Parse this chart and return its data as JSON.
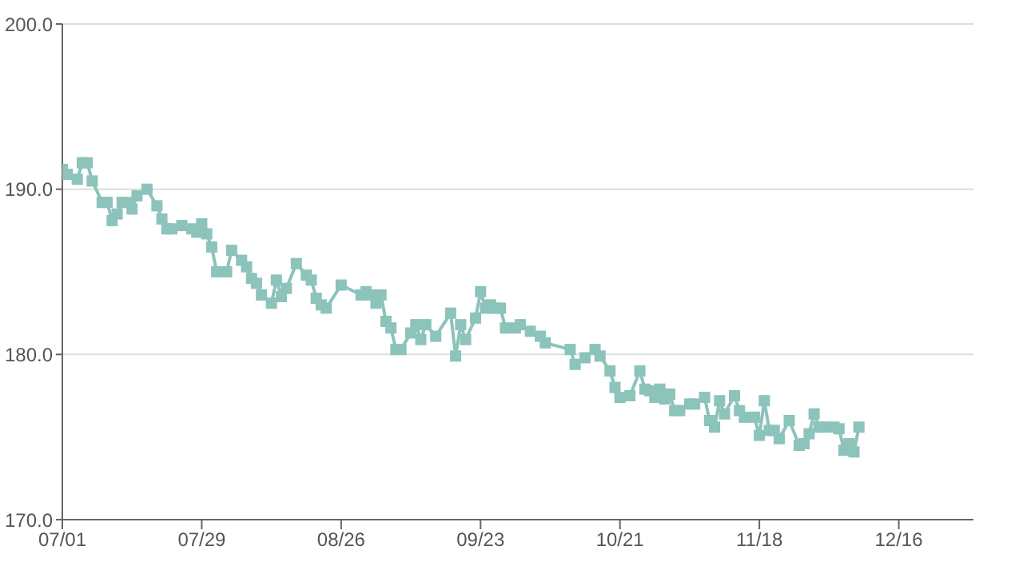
{
  "chart_data": {
    "type": "line",
    "x": [
      "--07-01",
      "--07-02",
      "--07-04",
      "--07-05",
      "--07-06",
      "--07-07",
      "--07-09",
      "--07-10",
      "--07-11",
      "--07-12",
      "--07-13",
      "--07-14",
      "--07-15",
      "--07-16",
      "--07-18",
      "--07-20",
      "--07-21",
      "--07-22",
      "--07-23",
      "--07-25",
      "--07-27",
      "--07-28",
      "--07-29",
      "--07-30",
      "--07-31",
      "--08-01",
      "--08-03",
      "--08-04",
      "--08-06",
      "--08-07",
      "--08-08",
      "--08-09",
      "--08-10",
      "--08-12",
      "--08-13",
      "--08-14",
      "--08-15",
      "--08-17",
      "--08-19",
      "--08-20",
      "--08-21",
      "--08-22",
      "--08-23",
      "--08-26",
      "--08-30",
      "--08-31",
      "--09-01",
      "--09-02",
      "--09-03",
      "--09-04",
      "--09-05",
      "--09-06",
      "--09-07",
      "--09-09",
      "--09-10",
      "--09-11",
      "--09-12",
      "--09-14",
      "--09-17",
      "--09-18",
      "--09-19",
      "--09-20",
      "--09-22",
      "--09-23",
      "--09-24",
      "--09-25",
      "--09-26",
      "--09-27",
      "--09-28",
      "--09-30",
      "--10-01",
      "--10-03",
      "--10-05",
      "--10-06",
      "--10-11",
      "--10-12",
      "--10-14",
      "--10-16",
      "--10-17",
      "--10-19",
      "--10-20",
      "--10-21",
      "--10-23",
      "--10-25",
      "--10-26",
      "--10-27",
      "--10-28",
      "--10-29",
      "--10-30",
      "--10-31",
      "--11-01",
      "--11-02",
      "--11-04",
      "--11-05",
      "--11-07",
      "--11-08",
      "--11-09",
      "--11-10",
      "--11-11",
      "--11-13",
      "--11-14",
      "--11-15",
      "--11-17",
      "--11-18",
      "--11-19",
      "--11-20",
      "--11-21",
      "--11-22",
      "--11-24",
      "--11-26",
      "--11-27",
      "--11-28",
      "--11-29",
      "--11-30",
      "--12-01",
      "--12-03",
      "--12-04",
      "--12-05",
      "--12-06",
      "--12-07",
      "--12-08"
    ],
    "series": [
      {
        "color": "#8cc3bb",
        "values": [
          191.2,
          190.9,
          190.6,
          191.6,
          191.6,
          190.5,
          189.2,
          189.2,
          188.1,
          188.5,
          189.2,
          189.2,
          188.8,
          189.6,
          190.0,
          189.0,
          188.2,
          187.6,
          187.6,
          187.8,
          187.6,
          187.4,
          187.9,
          187.3,
          186.5,
          185.0,
          185.0,
          186.3,
          185.7,
          185.3,
          184.6,
          184.3,
          183.6,
          183.1,
          184.5,
          183.5,
          184.0,
          185.5,
          184.8,
          184.5,
          183.4,
          183.0,
          182.8,
          184.2,
          183.6,
          183.8,
          183.6,
          183.1,
          183.6,
          182.0,
          181.6,
          180.3,
          180.3,
          181.3,
          181.8,
          180.9,
          181.8,
          181.1,
          182.5,
          179.9,
          181.8,
          180.9,
          182.2,
          183.8,
          182.8,
          183.0,
          182.8,
          182.8,
          181.6,
          181.6,
          181.8,
          181.4,
          181.1,
          180.7,
          180.3,
          179.4,
          179.8,
          180.3,
          179.9,
          179.0,
          178.0,
          177.4,
          177.5,
          179.0,
          177.9,
          177.8,
          177.4,
          177.9,
          177.3,
          177.6,
          176.6,
          176.6,
          177.0,
          177.0,
          177.4,
          176.0,
          175.6,
          177.2,
          176.4,
          177.5,
          176.6,
          176.2,
          176.2,
          175.1,
          177.2,
          175.4,
          175.4,
          174.9,
          176.0,
          174.5,
          174.6,
          175.2,
          176.4,
          175.6,
          175.6,
          175.6,
          175.5,
          174.2,
          174.6,
          174.1,
          175.6
        ]
      }
    ],
    "xlim": [
      "--07-01",
      "--12-31"
    ],
    "xticks": [
      {
        "value": "--07-01",
        "label": "07/01"
      },
      {
        "value": "--07-29",
        "label": "07/29"
      },
      {
        "value": "--08-26",
        "label": "08/26"
      },
      {
        "value": "--09-23",
        "label": "09/23"
      },
      {
        "value": "--10-21",
        "label": "10/21"
      },
      {
        "value": "--11-18",
        "label": "11/18"
      },
      {
        "value": "--12-16",
        "label": "12/16"
      }
    ],
    "ylim": [
      170,
      200
    ],
    "yticks": [
      {
        "value": 170,
        "label": "170.0"
      },
      {
        "value": 180,
        "label": "180.0"
      },
      {
        "value": 190,
        "label": "190.0"
      },
      {
        "value": 200,
        "label": "200.0"
      }
    ],
    "grid": "y",
    "marker": "square",
    "line_style": "solid"
  }
}
